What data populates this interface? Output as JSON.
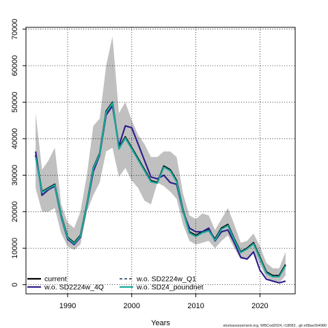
{
  "chart_data": {
    "type": "line",
    "xlabel": "Years",
    "ylabel": "",
    "xlim": [
      1983.5,
      2025.5
    ],
    "ylim": [
      -2500,
      70500
    ],
    "x_ticks": [
      1990,
      2000,
      2010,
      2020
    ],
    "y_ticks": [
      0,
      10000,
      20000,
      30000,
      40000,
      50000,
      60000,
      70000
    ],
    "y_tick_labels": [
      "0",
      "10000",
      "20000",
      "30000",
      "40000",
      "50000",
      "60000",
      "70000"
    ],
    "grid": true,
    "legend_position": "bottom-left",
    "years": [
      1985,
      1986,
      1987,
      1988,
      1989,
      1990,
      1991,
      1992,
      1993,
      1994,
      1995,
      1996,
      1997,
      1998,
      1999,
      2000,
      2001,
      2002,
      2003,
      2004,
      2005,
      2006,
      2007,
      2008,
      2009,
      2010,
      2011,
      2012,
      2013,
      2014,
      2015,
      2016,
      2017,
      2018,
      2019,
      2020,
      2021,
      2022,
      2023,
      2024
    ],
    "band": {
      "upper": [
        47000,
        31500,
        34000,
        37500,
        22000,
        17000,
        15500,
        20000,
        30000,
        43500,
        45500,
        60000,
        68000,
        47000,
        50000,
        45000,
        41000,
        38500,
        35000,
        35000,
        36500,
        36500,
        35000,
        25000,
        19000,
        18000,
        19500,
        19000,
        15000,
        18000,
        21000,
        16500,
        11500,
        12000,
        14000,
        10500,
        6000,
        4500,
        4500,
        9000
      ],
      "lower": [
        26500,
        20000,
        20000,
        21000,
        14000,
        10500,
        9500,
        11000,
        20000,
        24500,
        28000,
        36500,
        37500,
        29500,
        32000,
        28500,
        26500,
        23000,
        22000,
        28000,
        27000,
        25500,
        23500,
        16500,
        12000,
        11000,
        11500,
        12000,
        10000,
        12000,
        13500,
        10000,
        7000,
        7000,
        9000,
        5500,
        2000,
        1000,
        500,
        2500
      ]
    },
    "series": [
      {
        "name": "current",
        "color": "#000000",
        "dash": "solid",
        "values": [
          35500,
          25500,
          26500,
          27500,
          19000,
          13000,
          11500,
          13500,
          22000,
          32000,
          36000,
          47500,
          50000,
          37500,
          40500,
          37500,
          34500,
          31500,
          28500,
          28000,
          32500,
          31500,
          28500,
          20500,
          14500,
          13500,
          14500,
          15000,
          12500,
          15500,
          16500,
          12500,
          9000,
          10000,
          11500,
          7500,
          3500,
          2500,
          2500,
          5500
        ]
      },
      {
        "name": "w.o. SD2224w_4Q",
        "color": "#2d1f8c",
        "dash": "solid",
        "values": [
          36500,
          24500,
          26000,
          27000,
          18500,
          12500,
          11000,
          13000,
          21500,
          31000,
          35500,
          46500,
          49000,
          38000,
          43500,
          43000,
          38500,
          34000,
          29500,
          29000,
          30000,
          28000,
          27500,
          20000,
          15500,
          14500,
          14500,
          15500,
          12000,
          14500,
          15000,
          11500,
          7500,
          7000,
          9000,
          4000,
          1500,
          1000,
          500,
          1000
        ]
      },
      {
        "name": "w.o. SD2224w_Q1",
        "color": "#1c2f4d",
        "dash": "dashed",
        "values": [
          35300,
          25400,
          26400,
          27400,
          18900,
          12900,
          11400,
          13400,
          21900,
          31900,
          35900,
          47400,
          49900,
          37400,
          40400,
          37400,
          34400,
          31400,
          28400,
          27900,
          32400,
          31400,
          28400,
          20400,
          14400,
          13400,
          14400,
          14900,
          12400,
          15400,
          16400,
          12400,
          8900,
          9900,
          11400,
          7400,
          3400,
          2400,
          2400,
          5400
        ]
      },
      {
        "name": "w.o. SD24_poundnet",
        "color": "#1aa89a",
        "dash": "solid",
        "values": [
          35000,
          25300,
          26300,
          27300,
          18800,
          12800,
          11300,
          13300,
          21800,
          31800,
          35800,
          47200,
          49800,
          37200,
          40200,
          37200,
          34200,
          31200,
          28200,
          27800,
          32200,
          31200,
          28200,
          20200,
          14200,
          13200,
          14200,
          14800,
          12200,
          15200,
          16200,
          12200,
          8800,
          9800,
          11200,
          7200,
          3200,
          2200,
          2200,
          5200
        ]
      }
    ],
    "credit": "stockassessment.org, WBCod2024, r18083 , git e98ae2b4980"
  }
}
